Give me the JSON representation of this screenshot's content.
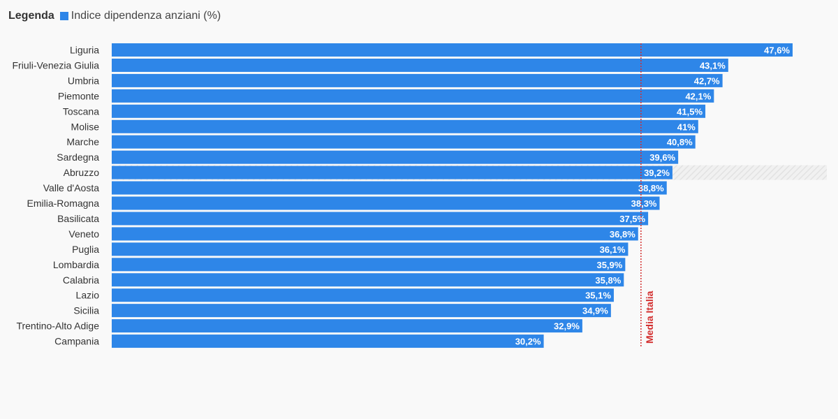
{
  "legend": {
    "title": "Legenda",
    "series_label": "Indice dipendenza anziani (%)"
  },
  "chart_data": {
    "type": "bar",
    "orientation": "horizontal",
    "categories": [
      "Liguria",
      "Friuli-Venezia Giulia",
      "Umbria",
      "Piemonte",
      "Toscana",
      "Molise",
      "Marche",
      "Sardegna",
      "Abruzzo",
      "Valle d'Aosta",
      "Emilia-Romagna",
      "Basilicata",
      "Veneto",
      "Puglia",
      "Lombardia",
      "Calabria",
      "Lazio",
      "Sicilia",
      "Trentino-Alto Adige",
      "Campania"
    ],
    "series": [
      {
        "name": "Indice dipendenza anziani (%)",
        "values": [
          47.6,
          43.1,
          42.7,
          42.1,
          41.5,
          41,
          40.8,
          39.6,
          39.2,
          38.8,
          38.3,
          37.5,
          36.8,
          36.1,
          35.9,
          35.8,
          35.1,
          34.9,
          32.9,
          30.2
        ],
        "labels": [
          "47,6%",
          "43,1%",
          "42,7%",
          "42,1%",
          "41,5%",
          "41%",
          "40,8%",
          "39,6%",
          "39,2%",
          "38,8%",
          "38,3%",
          "37,5%",
          "36,8%",
          "36,1%",
          "35,9%",
          "35,8%",
          "35,1%",
          "34,9%",
          "32,9%",
          "30,2%"
        ]
      }
    ],
    "xlim": [
      0,
      50
    ],
    "highlighted_category": "Abruzzo",
    "reference_line": {
      "label": "Media Italia",
      "value": 37
    },
    "colors": {
      "bar": "#2e86e8",
      "reference": "#d32f2f",
      "highlight_band": "#e8e8e8"
    },
    "grid": false,
    "legend_position": "top-left"
  }
}
